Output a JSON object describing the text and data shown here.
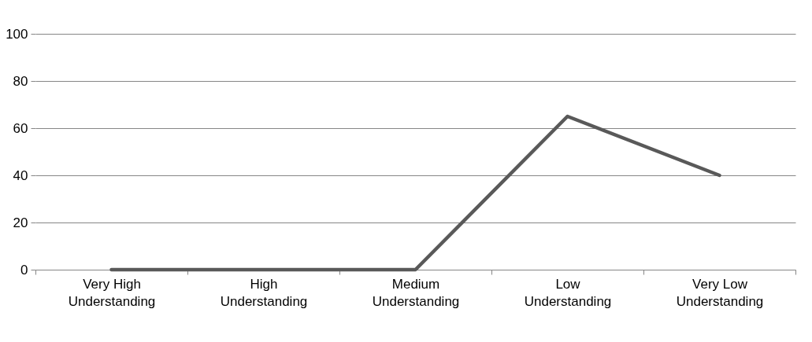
{
  "chart_data": {
    "type": "line",
    "categories": [
      "Very High Understanding",
      "High Understanding",
      "Medium Understanding",
      "Low Understanding",
      "Very Low Understanding"
    ],
    "series": [
      {
        "color": "#595959",
        "values": [
          0,
          0,
          0,
          65,
          40
        ]
      }
    ],
    "ylim": [
      0,
      100
    ],
    "yticks": [
      0,
      20,
      40,
      60,
      80,
      100
    ],
    "grid": "y",
    "line_style": "solid"
  }
}
